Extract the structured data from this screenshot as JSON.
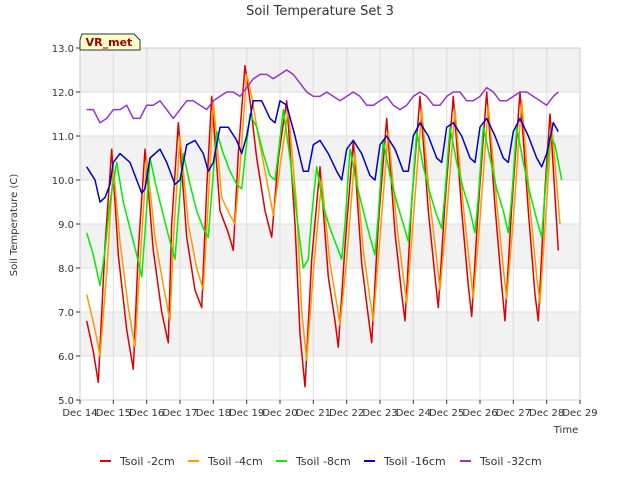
{
  "chart_data": {
    "type": "line",
    "title": "Soil Temperature Set 3",
    "xlabel": "Time",
    "ylabel": "Soil Temperature (C)",
    "station_label": "VR_met",
    "xlim": [
      14,
      29
    ],
    "ylim": [
      5.0,
      13.0
    ],
    "x_ticks": [
      14,
      15,
      16,
      17,
      18,
      19,
      20,
      21,
      22,
      23,
      24,
      25,
      26,
      27,
      28,
      29
    ],
    "x_tick_labels": [
      "Dec 14",
      "Dec 15",
      "Dec 16",
      "Dec 17",
      "Dec 18",
      "Dec 19",
      "Dec 20",
      "Dec 21",
      "Dec 22",
      "Dec 23",
      "Dec 24",
      "Dec 25",
      "Dec 26",
      "Dec 27",
      "Dec 28",
      "Dec 29"
    ],
    "y_ticks": [
      5.0,
      6.0,
      7.0,
      8.0,
      9.0,
      10.0,
      11.0,
      12.0,
      13.0
    ],
    "y_tick_labels": [
      "5.0",
      "6.0",
      "7.0",
      "8.0",
      "9.0",
      "10.0",
      "11.0",
      "12.0",
      "13.0"
    ],
    "grid": true,
    "legend_position": "bottom",
    "series": [
      {
        "name": "Tsoil -2cm",
        "color": "#dd0000",
        "x": [
          14.2,
          14.4,
          14.55,
          14.75,
          14.95,
          15.15,
          15.4,
          15.6,
          15.75,
          15.95,
          16.2,
          16.45,
          16.65,
          16.75,
          16.95,
          17.2,
          17.45,
          17.65,
          17.8,
          17.95,
          18.2,
          18.45,
          18.6,
          18.75,
          18.95,
          19.1,
          19.3,
          19.55,
          19.75,
          19.95,
          20.2,
          20.45,
          20.6,
          20.75,
          20.95,
          21.2,
          21.45,
          21.65,
          21.75,
          21.95,
          22.2,
          22.45,
          22.65,
          22.75,
          22.95,
          23.2,
          23.45,
          23.65,
          23.75,
          23.95,
          24.2,
          24.45,
          24.65,
          24.75,
          24.95,
          25.2,
          25.45,
          25.65,
          25.75,
          25.95,
          26.2,
          26.45,
          26.65,
          26.75,
          26.95,
          27.2,
          27.45,
          27.65,
          27.75,
          27.95,
          28.1,
          28.35
        ],
        "values": [
          6.8,
          6.1,
          5.4,
          8.5,
          10.7,
          8.3,
          6.6,
          5.7,
          8.4,
          10.7,
          8.4,
          7.0,
          6.3,
          9.0,
          11.3,
          8.7,
          7.5,
          7.1,
          9.8,
          11.9,
          9.3,
          8.8,
          8.4,
          10.6,
          12.6,
          11.8,
          10.5,
          9.3,
          8.7,
          10.5,
          11.8,
          9.0,
          6.5,
          5.3,
          8.2,
          10.3,
          7.8,
          6.8,
          6.2,
          8.5,
          10.9,
          8.1,
          6.9,
          6.3,
          9.0,
          11.4,
          8.8,
          7.4,
          6.8,
          9.5,
          11.9,
          9.3,
          7.8,
          7.1,
          9.5,
          11.9,
          9.3,
          7.6,
          6.9,
          9.4,
          12.0,
          9.4,
          7.6,
          6.8,
          9.4,
          12.0,
          9.3,
          7.4,
          6.8,
          9.8,
          11.5,
          8.4
        ]
      },
      {
        "name": "Tsoil -4cm",
        "color": "#ff9900",
        "x": [
          14.2,
          14.45,
          14.6,
          14.8,
          15.0,
          15.2,
          15.45,
          15.65,
          15.8,
          16.0,
          16.25,
          16.5,
          16.7,
          16.8,
          17.0,
          17.25,
          17.5,
          17.7,
          17.85,
          18.0,
          18.25,
          18.5,
          18.65,
          18.8,
          19.0,
          19.15,
          19.35,
          19.6,
          19.8,
          20.0,
          20.25,
          20.5,
          20.65,
          20.8,
          21.0,
          21.25,
          21.5,
          21.7,
          21.8,
          22.0,
          22.25,
          22.5,
          22.7,
          22.8,
          23.0,
          23.25,
          23.5,
          23.7,
          23.8,
          24.0,
          24.25,
          24.5,
          24.7,
          24.8,
          25.0,
          25.25,
          25.5,
          25.7,
          25.8,
          26.0,
          26.25,
          26.5,
          26.7,
          26.8,
          27.0,
          27.25,
          27.5,
          27.7,
          27.8,
          28.0,
          28.15,
          28.4
        ],
        "values": [
          7.4,
          6.6,
          6.0,
          7.9,
          10.3,
          8.6,
          7.1,
          6.2,
          8.1,
          10.5,
          8.7,
          7.6,
          6.8,
          8.6,
          11.0,
          9.0,
          8.0,
          7.5,
          9.5,
          11.8,
          9.6,
          9.2,
          9.0,
          10.3,
          12.4,
          11.9,
          11.0,
          10.0,
          9.2,
          10.3,
          11.6,
          9.4,
          7.0,
          5.9,
          7.9,
          10.0,
          8.1,
          7.2,
          6.7,
          8.2,
          10.6,
          8.4,
          7.3,
          6.8,
          8.7,
          11.1,
          9.0,
          7.8,
          7.2,
          9.1,
          11.6,
          9.5,
          8.2,
          7.5,
          9.2,
          11.6,
          9.4,
          8.0,
          7.3,
          9.1,
          11.7,
          9.5,
          8.0,
          7.3,
          9.1,
          11.8,
          9.4,
          7.8,
          7.2,
          9.5,
          11.3,
          9.0
        ]
      },
      {
        "name": "Tsoil -8cm",
        "color": "#00ee00",
        "x": [
          14.2,
          14.4,
          14.6,
          14.75,
          14.9,
          15.1,
          15.3,
          15.5,
          15.7,
          15.85,
          15.95,
          16.1,
          16.3,
          16.5,
          16.7,
          16.85,
          16.95,
          17.1,
          17.3,
          17.5,
          17.7,
          17.85,
          17.95,
          18.1,
          18.3,
          18.5,
          18.7,
          18.85,
          18.95,
          19.1,
          19.3,
          19.5,
          19.7,
          19.85,
          19.95,
          20.1,
          20.3,
          20.5,
          20.7,
          20.85,
          20.95,
          21.1,
          21.3,
          21.5,
          21.7,
          21.85,
          21.95,
          22.1,
          22.3,
          22.5,
          22.7,
          22.85,
          22.95,
          23.1,
          23.3,
          23.5,
          23.7,
          23.85,
          23.95,
          24.1,
          24.3,
          24.5,
          24.7,
          24.85,
          24.95,
          25.1,
          25.3,
          25.5,
          25.7,
          25.85,
          25.95,
          26.1,
          26.3,
          26.5,
          26.7,
          26.85,
          26.95,
          27.1,
          27.3,
          27.5,
          27.7,
          27.85,
          27.95,
          28.1,
          28.25,
          28.45
        ],
        "values": [
          8.8,
          8.3,
          7.6,
          8.4,
          9.5,
          10.4,
          9.5,
          8.9,
          8.3,
          7.8,
          8.8,
          10.5,
          9.8,
          9.2,
          8.6,
          8.2,
          9.2,
          10.6,
          9.9,
          9.3,
          8.9,
          8.7,
          9.7,
          11.1,
          10.6,
          10.2,
          9.9,
          9.8,
          10.5,
          11.5,
          11.2,
          10.6,
          10.1,
          10.0,
          10.6,
          11.6,
          10.5,
          9.2,
          8.0,
          8.2,
          9.2,
          10.3,
          9.4,
          8.9,
          8.5,
          8.2,
          9.0,
          10.7,
          9.9,
          9.3,
          8.7,
          8.3,
          9.2,
          10.9,
          10.1,
          9.5,
          9.0,
          8.6,
          9.5,
          11.1,
          10.3,
          9.7,
          9.2,
          8.9,
          9.7,
          11.2,
          10.4,
          9.8,
          9.3,
          8.8,
          9.6,
          11.2,
          10.5,
          9.8,
          9.3,
          8.8,
          9.6,
          11.2,
          10.4,
          9.7,
          9.1,
          8.7,
          9.7,
          11.0,
          10.8,
          10.0
        ]
      },
      {
        "name": "Tsoil -16cm",
        "color": "#0000cc",
        "x": [
          14.2,
          14.45,
          14.6,
          14.75,
          14.9,
          15.0,
          15.2,
          15.5,
          15.7,
          15.85,
          15.95,
          16.1,
          16.4,
          16.6,
          16.85,
          17.0,
          17.2,
          17.45,
          17.7,
          17.85,
          18.0,
          18.2,
          18.45,
          18.7,
          18.85,
          19.0,
          19.2,
          19.45,
          19.7,
          19.85,
          20.0,
          20.2,
          20.45,
          20.7,
          20.85,
          21.0,
          21.2,
          21.45,
          21.7,
          21.85,
          22.0,
          22.2,
          22.45,
          22.7,
          22.85,
          23.0,
          23.2,
          23.45,
          23.7,
          23.85,
          24.0,
          24.2,
          24.45,
          24.7,
          24.85,
          25.0,
          25.2,
          25.45,
          25.7,
          25.85,
          26.0,
          26.2,
          26.45,
          26.7,
          26.85,
          27.0,
          27.2,
          27.45,
          27.7,
          27.85,
          28.0,
          28.2,
          28.35
        ],
        "values": [
          10.3,
          10.0,
          9.5,
          9.6,
          9.9,
          10.4,
          10.6,
          10.4,
          10.0,
          9.7,
          9.8,
          10.5,
          10.7,
          10.4,
          9.9,
          10.0,
          10.8,
          10.9,
          10.6,
          10.2,
          10.4,
          11.2,
          11.2,
          10.9,
          10.6,
          11.0,
          11.8,
          11.8,
          11.4,
          11.3,
          11.8,
          11.7,
          11.0,
          10.2,
          10.2,
          10.8,
          10.9,
          10.6,
          10.2,
          10.0,
          10.7,
          10.9,
          10.6,
          10.1,
          10.0,
          10.8,
          11.0,
          10.7,
          10.2,
          10.2,
          11.0,
          11.3,
          11.0,
          10.5,
          10.4,
          11.2,
          11.3,
          11.0,
          10.5,
          10.4,
          11.2,
          11.4,
          11.0,
          10.5,
          10.4,
          11.1,
          11.4,
          11.0,
          10.5,
          10.3,
          10.6,
          11.3,
          11.1
        ]
      },
      {
        "name": "Tsoil -32cm",
        "color": "#9933cc",
        "x": [
          14.2,
          14.4,
          14.6,
          14.8,
          15.0,
          15.2,
          15.4,
          15.6,
          15.8,
          16.0,
          16.2,
          16.4,
          16.6,
          16.8,
          17.0,
          17.2,
          17.4,
          17.6,
          17.8,
          18.0,
          18.2,
          18.4,
          18.6,
          18.8,
          19.0,
          19.2,
          19.4,
          19.6,
          19.8,
          20.0,
          20.2,
          20.4,
          20.6,
          20.8,
          21.0,
          21.2,
          21.4,
          21.6,
          21.8,
          22.0,
          22.2,
          22.4,
          22.6,
          22.8,
          23.0,
          23.2,
          23.4,
          23.6,
          23.8,
          24.0,
          24.2,
          24.4,
          24.6,
          24.8,
          25.0,
          25.2,
          25.4,
          25.6,
          25.8,
          26.0,
          26.2,
          26.4,
          26.6,
          26.8,
          27.0,
          27.2,
          27.4,
          27.6,
          27.8,
          28.0,
          28.2,
          28.35
        ],
        "values": [
          11.6,
          11.6,
          11.3,
          11.4,
          11.6,
          11.6,
          11.7,
          11.4,
          11.4,
          11.7,
          11.7,
          11.8,
          11.6,
          11.4,
          11.6,
          11.8,
          11.8,
          11.7,
          11.6,
          11.8,
          11.9,
          12.0,
          12.0,
          11.9,
          12.1,
          12.3,
          12.4,
          12.4,
          12.3,
          12.4,
          12.5,
          12.4,
          12.2,
          12.0,
          11.9,
          11.9,
          12.0,
          11.9,
          11.8,
          11.9,
          12.0,
          11.9,
          11.7,
          11.7,
          11.8,
          11.9,
          11.7,
          11.6,
          11.7,
          11.9,
          12.0,
          11.9,
          11.7,
          11.7,
          11.9,
          12.0,
          12.0,
          11.8,
          11.8,
          11.9,
          12.1,
          12.0,
          11.8,
          11.8,
          11.9,
          12.0,
          12.0,
          11.9,
          11.8,
          11.7,
          11.9,
          12.0
        ]
      }
    ]
  }
}
